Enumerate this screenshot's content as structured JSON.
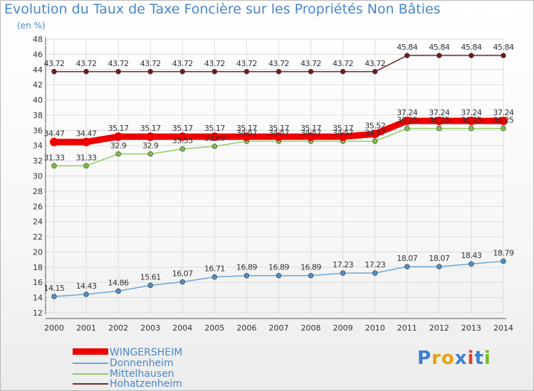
{
  "title": "Evolution du Taux de Taxe Foncière sur les Propriétés Non Bâties",
  "subtitle": "(en %)",
  "brand": {
    "letters": [
      "P",
      "r",
      "o",
      "x",
      "i",
      "t",
      "i"
    ],
    "colors": [
      "#3a7fd0",
      "#e8a010",
      "#e8a010",
      "#3a7fd0",
      "#e84030",
      "#3a7fd0",
      "#7ab830"
    ]
  },
  "chart_data": {
    "type": "line",
    "categories": [
      "2000",
      "2001",
      "2002",
      "2003",
      "2004",
      "2005",
      "2006",
      "2007",
      "2008",
      "2009",
      "2010",
      "2011",
      "2012",
      "2013",
      "2014"
    ],
    "ylim": [
      12,
      48
    ],
    "yticks": [
      "12",
      "14",
      "16",
      "18",
      "20",
      "22",
      "24",
      "26",
      "28",
      "30",
      "32",
      "34",
      "36",
      "38",
      "40",
      "42",
      "44",
      "46",
      "48"
    ],
    "grid": true,
    "series": [
      {
        "name": "Hohatzenheim",
        "color": "#7a2626",
        "marker": "#6e1c1c",
        "width": 1.5,
        "values": [
          43.72,
          43.72,
          43.72,
          43.72,
          43.72,
          43.72,
          43.72,
          43.72,
          43.72,
          43.72,
          43.72,
          45.84,
          45.84,
          45.84,
          45.84
        ],
        "labels": [
          "43.72",
          "43.72",
          "43.72",
          "43.72",
          "43.72",
          "43.72",
          "43.72",
          "43.72",
          "43.72",
          "43.72",
          "43.72",
          "45.84",
          "45.84",
          "45.84",
          "45.84"
        ]
      },
      {
        "name": "Mittelhausen",
        "color": "#8fd060",
        "marker": "#7ac240",
        "width": 1.5,
        "values": [
          31.33,
          31.33,
          32.9,
          32.9,
          33.55,
          33.89,
          34.57,
          34.57,
          34.57,
          34.57,
          34.57,
          36.25,
          36.25,
          36.25,
          36.25
        ],
        "labels": [
          "31.33",
          "31.33",
          "32.9",
          "32.9",
          "33.55",
          "33.89",
          "34.57",
          "34.57",
          "34.57",
          "34.57",
          "34.57",
          "36.25",
          "36.25",
          "36.25",
          "36.25"
        ]
      },
      {
        "name": "Donnenheim",
        "color": "#6ea6d8",
        "marker": "#4a90cf",
        "width": 1.5,
        "values": [
          14.15,
          14.43,
          14.86,
          15.61,
          16.07,
          16.71,
          16.89,
          16.89,
          16.89,
          17.23,
          17.23,
          18.07,
          18.07,
          18.43,
          18.79
        ],
        "labels": [
          "14.15",
          "14.43",
          "14.86",
          "15.61",
          "16.07",
          "16.71",
          "16.89",
          "16.89",
          "16.89",
          "17.23",
          "17.23",
          "18.07",
          "18.07",
          "18.43",
          "18.79"
        ]
      },
      {
        "name": "WINGERSHEIM",
        "color": "#ee0000",
        "marker": "#ee0000",
        "width": 9,
        "values": [
          34.47,
          34.47,
          35.17,
          35.17,
          35.17,
          35.17,
          35.17,
          35.17,
          35.17,
          35.17,
          35.52,
          37.24,
          37.24,
          37.24,
          37.24
        ],
        "labels": [
          "34.47",
          "34.47",
          "35.17",
          "35.17",
          "35.17",
          "35.17",
          "35.17",
          "35.17",
          "35.17",
          "35.17",
          "35.52",
          "37.24",
          "37.24",
          "37.24",
          "37.24"
        ]
      }
    ],
    "legend": [
      {
        "name": "WINGERSHEIM",
        "color": "#ee0000"
      },
      {
        "name": "Donnenheim",
        "color": "#6ea6d8"
      },
      {
        "name": "Mittelhausen",
        "color": "#8fd060"
      },
      {
        "name": "Hohatzenheim",
        "color": "#7a2626"
      }
    ]
  }
}
